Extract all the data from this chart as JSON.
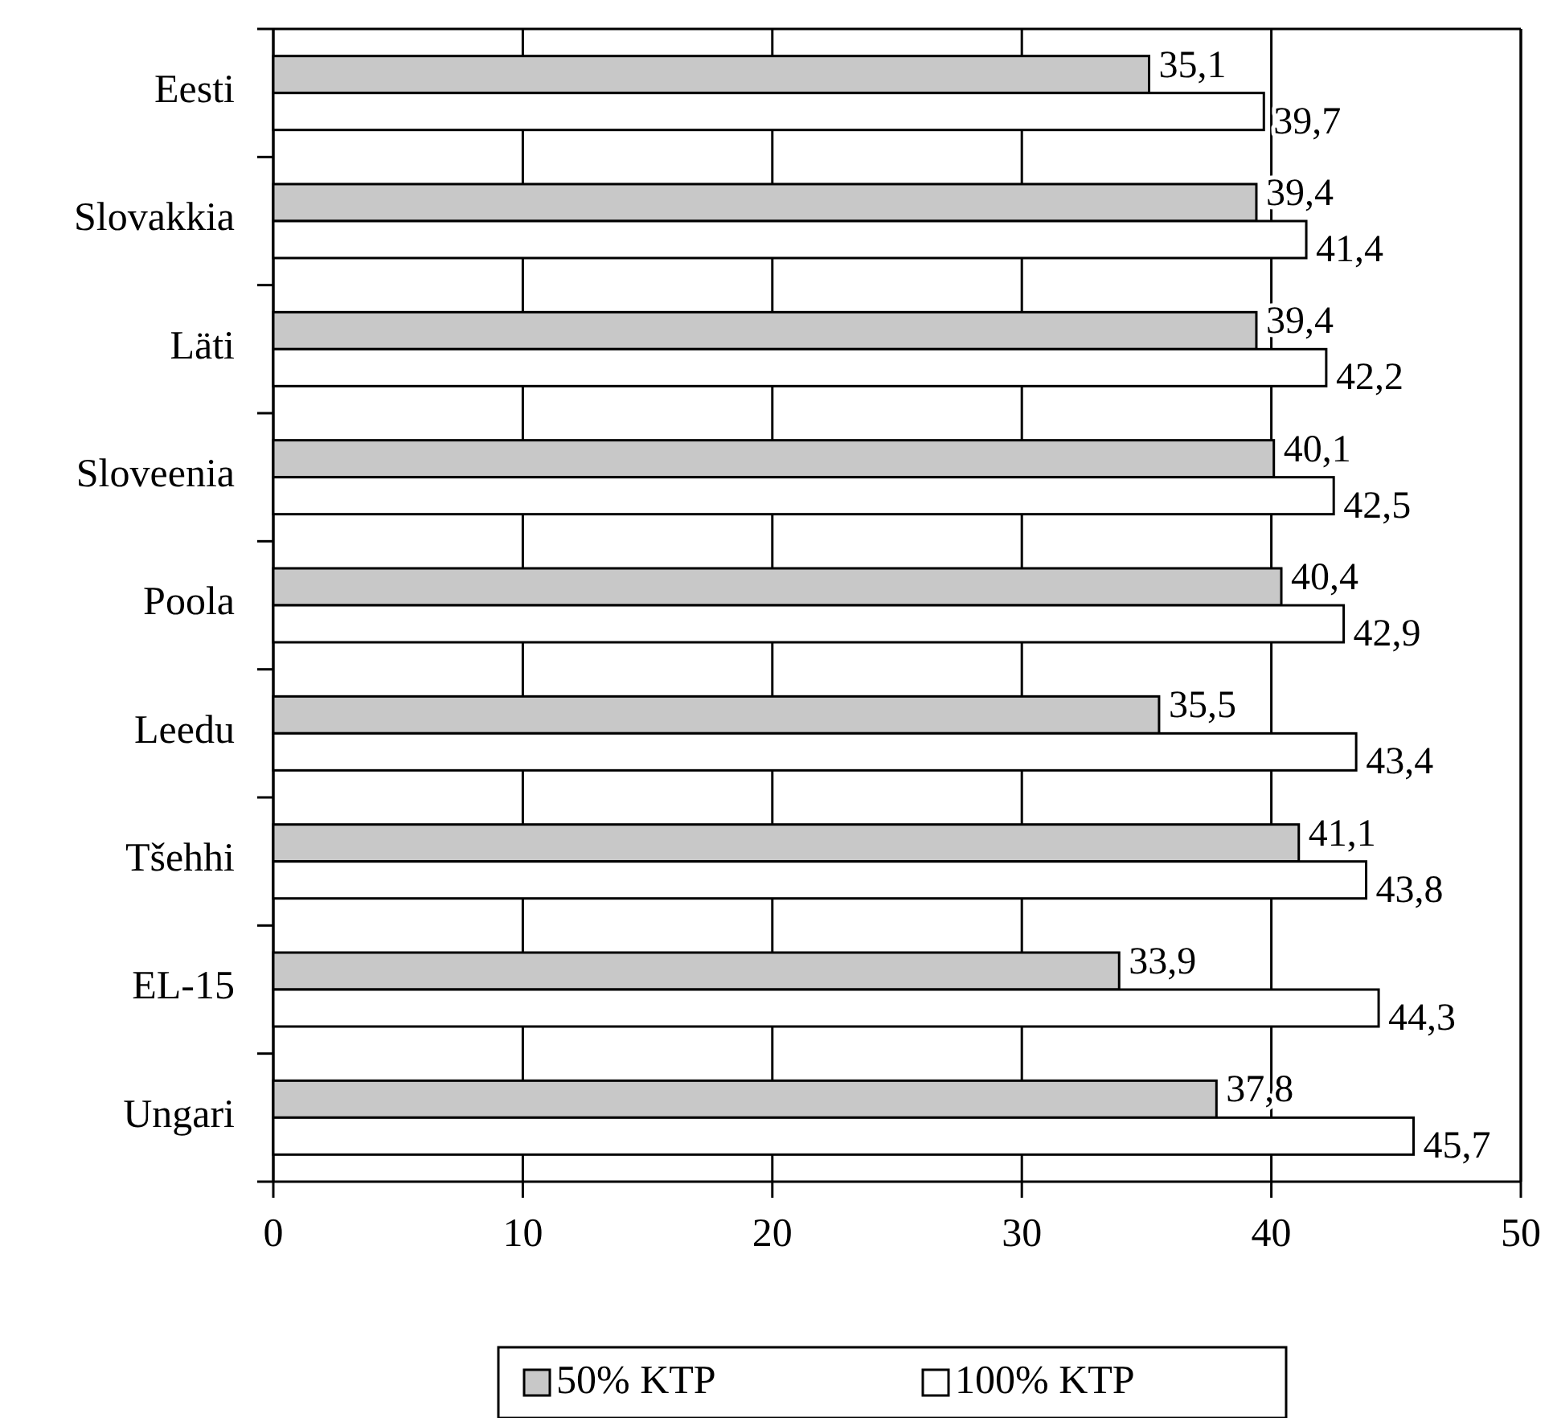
{
  "chart_data": {
    "type": "bar",
    "orientation": "horizontal",
    "categories": [
      "Eesti",
      "Slovakkia",
      "Läti",
      "Sloveenia",
      "Poola",
      "Leedu",
      "Tšehhi",
      "EL-15",
      "Ungari"
    ],
    "series": [
      {
        "name": "50% KTP",
        "color": "#c8c8c8",
        "values": [
          35.1,
          39.4,
          39.4,
          40.1,
          40.4,
          35.5,
          41.1,
          33.9,
          37.8
        ],
        "value_labels": [
          "35,1",
          "39,4",
          "39,4",
          "40,1",
          "40,4",
          "35,5",
          "41,1",
          "33,9",
          "37,8"
        ]
      },
      {
        "name": "100% KTP",
        "color": "#ffffff",
        "values": [
          39.7,
          41.4,
          42.2,
          42.5,
          42.9,
          43.4,
          43.8,
          44.3,
          45.7
        ],
        "value_labels": [
          "39,7",
          "41,4",
          "42,2",
          "42,5",
          "42,9",
          "43,4",
          "43,8",
          "44,3",
          "45,7"
        ]
      }
    ],
    "xlim": [
      0,
      50
    ],
    "xticks": [
      0,
      10,
      20,
      30,
      40,
      50
    ],
    "grid": "x",
    "legend": "bottom"
  }
}
